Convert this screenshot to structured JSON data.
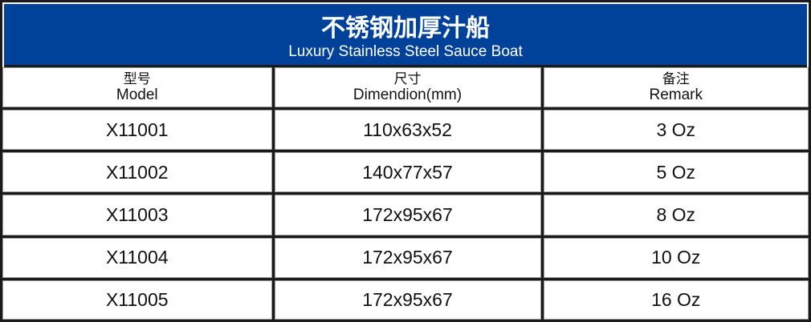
{
  "title": {
    "cn": "不锈钢加厚汁船",
    "en": "Luxury Stainless Steel Sauce Boat"
  },
  "colors": {
    "banner": "#00419a",
    "border": "#1a1a1a"
  },
  "headers": [
    {
      "cn": "型号",
      "en": "Model"
    },
    {
      "cn": "尺寸",
      "en": "Dimendion(mm)"
    },
    {
      "cn": "备注",
      "en": "Remark"
    }
  ],
  "rows": [
    {
      "model": "X11001",
      "size": "110x63x52",
      "remark": "3 Oz"
    },
    {
      "model": "X11002",
      "size": "140x77x57",
      "remark": "5 Oz"
    },
    {
      "model": "X11003",
      "size": "172x95x67",
      "remark": "8 Oz"
    },
    {
      "model": "X11004",
      "size": "172x95x67",
      "remark": "10 Oz"
    },
    {
      "model": "X11005",
      "size": "172x95x67",
      "remark": "16 Oz"
    }
  ]
}
